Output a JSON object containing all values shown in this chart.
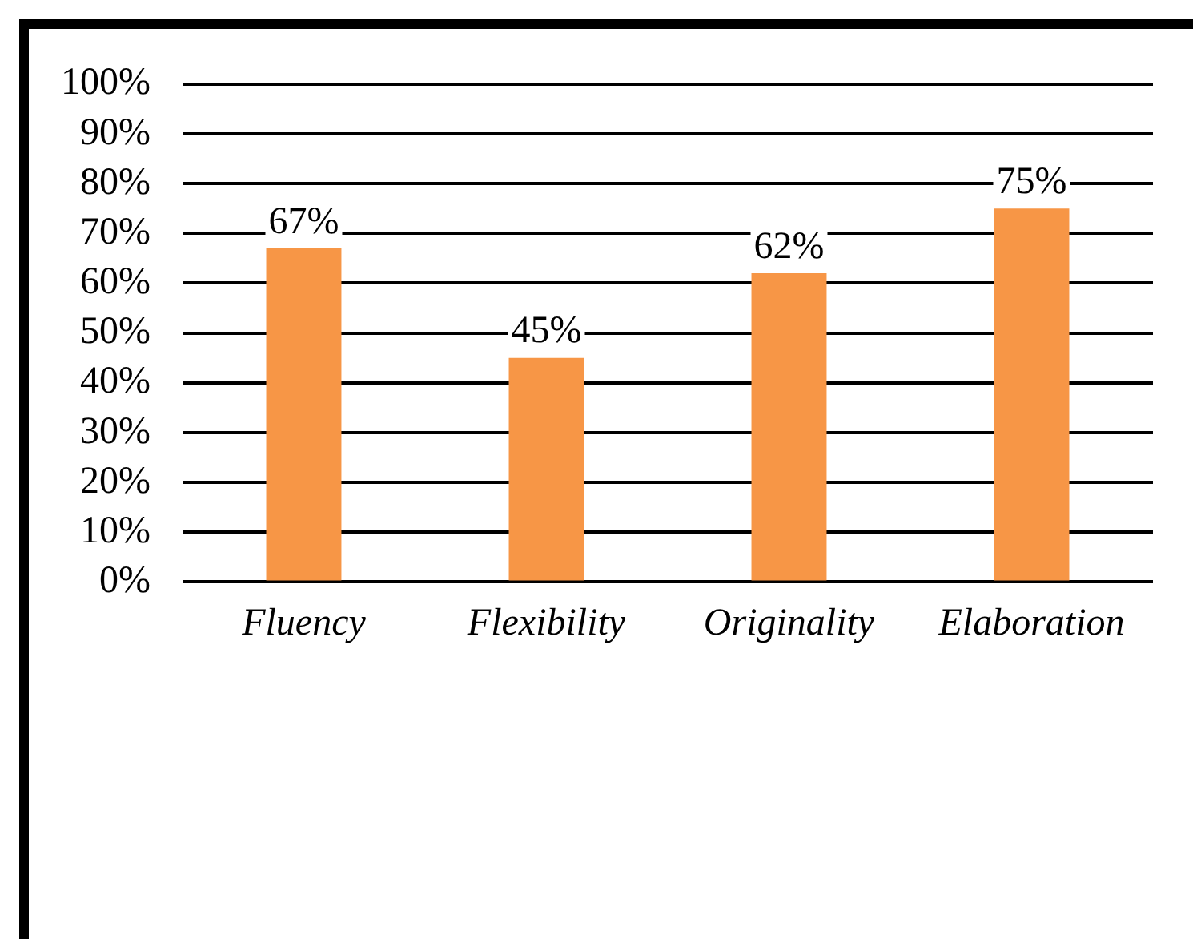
{
  "chart_data": {
    "type": "bar",
    "categories": [
      "Fluency",
      "Flexibility",
      "Originality",
      "Elaboration"
    ],
    "values": [
      67,
      45,
      62,
      75
    ],
    "color": "#f79646",
    "value_labels": [
      "67%",
      "45%",
      "62%",
      "75%"
    ],
    "ylim": [
      0,
      100
    ],
    "yticks": [
      {
        "value": 0,
        "label": "0%"
      },
      {
        "value": 10,
        "label": "10%"
      },
      {
        "value": 20,
        "label": "20%"
      },
      {
        "value": 30,
        "label": "30%"
      },
      {
        "value": 40,
        "label": "40%"
      },
      {
        "value": 50,
        "label": "50%"
      },
      {
        "value": 60,
        "label": "60%"
      },
      {
        "value": 70,
        "label": "70%"
      },
      {
        "value": 80,
        "label": "80%"
      },
      {
        "value": 90,
        "label": "90%"
      },
      {
        "value": 100,
        "label": "100%"
      }
    ],
    "grid": "y",
    "legend": false
  }
}
